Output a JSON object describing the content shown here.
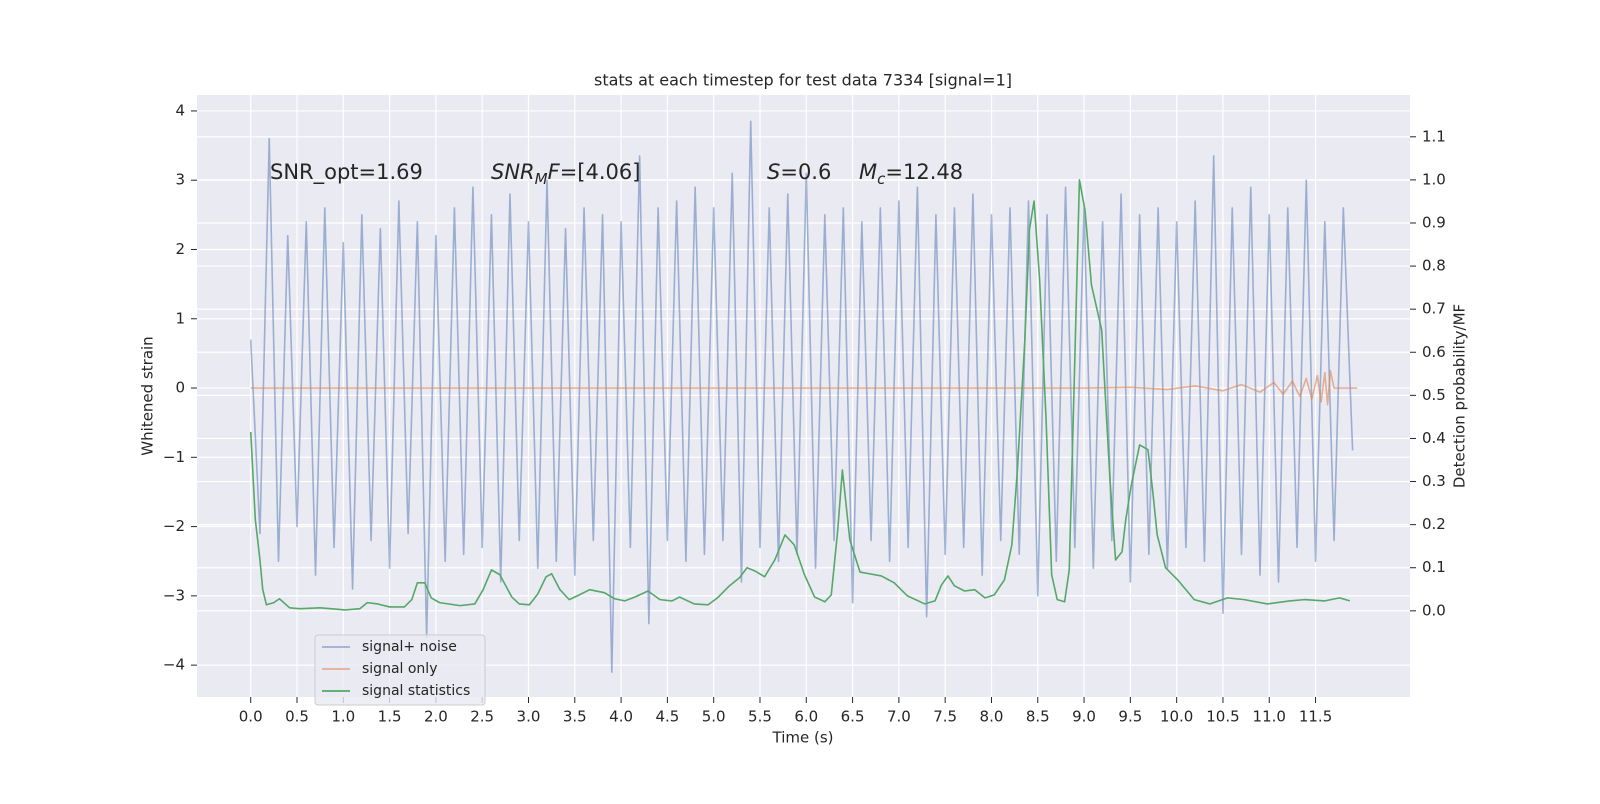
{
  "chart_data": {
    "type": "line",
    "title": "stats at each timestep for test data 7334 [signal=1]",
    "xlabel": "Time (s)",
    "ylabel": "Whitened strain",
    "y2label": "Detection probability/MF",
    "annotations": [
      [
        {
          "t": "SNR_opt=1.69"
        }
      ],
      [
        {
          "t": "SNR",
          "style": "italic"
        },
        {
          "t": "M",
          "style": "sub"
        },
        {
          "t": "F",
          "style": "italic"
        },
        {
          "t": "=[4.06]"
        }
      ],
      [
        {
          "t": "S",
          "style": "italic"
        },
        {
          "t": "=0.6"
        }
      ],
      [
        {
          "t": "M",
          "style": "italic"
        },
        {
          "t": "c",
          "style": "sub"
        },
        {
          "t": "=12.48"
        }
      ]
    ],
    "xlim": [
      -0.58,
      12.52
    ],
    "ylim": [
      -4.46,
      4.23
    ],
    "y2lim": [
      -0.2,
      1.197
    ],
    "xticks": [
      {
        "value": 0,
        "label": "0.0"
      },
      {
        "value": 0.5,
        "label": "0.5"
      },
      {
        "value": 1,
        "label": "1.0"
      },
      {
        "value": 1.5,
        "label": "1.5"
      },
      {
        "value": 2,
        "label": "2.0"
      },
      {
        "value": 2.5,
        "label": "2.5"
      },
      {
        "value": 3,
        "label": "3.0"
      },
      {
        "value": 3.5,
        "label": "3.5"
      },
      {
        "value": 4,
        "label": "4.0"
      },
      {
        "value": 4.5,
        "label": "4.5"
      },
      {
        "value": 5,
        "label": "5.0"
      },
      {
        "value": 5.5,
        "label": "5.5"
      },
      {
        "value": 6,
        "label": "6.0"
      },
      {
        "value": 6.5,
        "label": "6.5"
      },
      {
        "value": 7,
        "label": "7.0"
      },
      {
        "value": 7.5,
        "label": "7.5"
      },
      {
        "value": 8,
        "label": "8.0"
      },
      {
        "value": 8.5,
        "label": "8.5"
      },
      {
        "value": 9,
        "label": "9.0"
      },
      {
        "value": 9.5,
        "label": "9.5"
      },
      {
        "value": 10,
        "label": "10.0"
      },
      {
        "value": 10.5,
        "label": "10.5"
      },
      {
        "value": 11,
        "label": "11.0"
      },
      {
        "value": 11.5,
        "label": "11.5"
      }
    ],
    "yticks": [
      {
        "value": -4,
        "label": "−4"
      },
      {
        "value": -3,
        "label": "−3"
      },
      {
        "value": -2,
        "label": "−2"
      },
      {
        "value": -1,
        "label": "−1"
      },
      0,
      1,
      2,
      3,
      4
    ],
    "y2ticks": [
      {
        "value": 0,
        "label": "0.0"
      },
      {
        "value": 0.1,
        "label": "0.1"
      },
      {
        "value": 0.2,
        "label": "0.2"
      },
      {
        "value": 0.3,
        "label": "0.3"
      },
      {
        "value": 0.4,
        "label": "0.4"
      },
      {
        "value": 0.5,
        "label": "0.5"
      },
      {
        "value": 0.6,
        "label": "0.6"
      },
      {
        "value": 0.7,
        "label": "0.7"
      },
      {
        "value": 0.8,
        "label": "0.8"
      },
      {
        "value": 0.9,
        "label": "0.9"
      },
      {
        "value": 1,
        "label": "1.0"
      },
      {
        "value": 1.1,
        "label": "1.1"
      }
    ],
    "grid": true,
    "legend": "lower left",
    "series": [
      {
        "name": "signal+ noise",
        "color": "#4c72b0",
        "opacity": 0.5,
        "x": [
          0,
          0.1,
          0.2,
          0.3,
          0.4,
          0.5,
          0.6,
          0.7,
          0.8,
          0.9,
          1,
          1.1,
          1.2,
          1.3,
          1.4,
          1.5,
          1.6,
          1.7,
          1.8,
          1.9,
          2,
          2.1,
          2.2,
          2.3,
          2.4,
          2.5,
          2.6,
          2.7,
          2.8,
          2.9,
          3,
          3.1,
          3.2,
          3.3,
          3.4,
          3.5,
          3.6,
          3.7,
          3.8,
          3.9,
          4,
          4.1,
          4.2,
          4.3,
          4.4,
          4.5,
          4.6,
          4.7,
          4.8,
          4.9,
          5,
          5.1,
          5.2,
          5.3,
          5.4,
          5.5,
          5.6,
          5.7,
          5.8,
          5.9,
          6,
          6.1,
          6.2,
          6.3,
          6.4,
          6.5,
          6.6,
          6.7,
          6.8,
          6.9,
          7,
          7.1,
          7.2,
          7.3,
          7.4,
          7.5,
          7.6,
          7.7,
          7.8,
          7.9,
          8,
          8.1,
          8.2,
          8.3,
          8.4,
          8.5,
          8.6,
          8.7,
          8.8,
          8.9,
          9,
          9.1,
          9.2,
          9.3,
          9.4,
          9.5,
          9.6,
          9.7,
          9.8,
          9.9,
          10,
          10.1,
          10.2,
          10.3,
          10.4,
          10.5,
          10.6,
          10.7,
          10.8,
          10.9,
          11,
          11.1,
          11.2,
          11.3,
          11.4,
          11.5,
          11.6,
          11.7,
          11.8,
          11.9
        ],
        "values": [
          0.7,
          -2.1,
          3.6,
          -2.5,
          2.2,
          -2.0,
          2.4,
          -2.7,
          2.6,
          -2.3,
          2.1,
          -2.9,
          2.5,
          -2.2,
          2.3,
          -2.6,
          2.7,
          -2.1,
          2.4,
          -3.6,
          2.2,
          -2.5,
          2.6,
          -2.4,
          2.9,
          -2.3,
          2.5,
          -2.8,
          2.8,
          -2.2,
          2.4,
          -2.6,
          3.0,
          -2.5,
          2.3,
          -2.7,
          2.6,
          -2.2,
          2.5,
          -4.1,
          2.4,
          -2.3,
          3.35,
          -3.4,
          2.6,
          -2.2,
          2.7,
          -2.5,
          2.9,
          -2.4,
          2.6,
          -2.2,
          3.1,
          -2.8,
          3.85,
          -2.3,
          2.6,
          -2.5,
          2.8,
          -2.4,
          3.1,
          -2.6,
          2.5,
          -2.2,
          2.6,
          -3.1,
          2.4,
          -2.2,
          2.6,
          -2.5,
          2.7,
          -2.3,
          2.9,
          -3.3,
          2.5,
          -2.4,
          2.6,
          -2.3,
          2.8,
          -2.7,
          2.5,
          -2.2,
          2.6,
          -2.4,
          2.7,
          -3.0,
          2.5,
          -2.5,
          2.9,
          -2.3,
          2.6,
          -2.6,
          2.4,
          -2.2,
          2.8,
          -2.8,
          2.5,
          -2.4,
          2.6,
          -2.6,
          2.4,
          -2.3,
          2.7,
          -2.5,
          3.35,
          -3.25,
          2.6,
          -2.4,
          2.9,
          -2.7,
          2.5,
          -2.8,
          2.6,
          -2.3,
          3.0,
          -2.5,
          2.4,
          -2.2,
          2.6,
          -0.9
        ]
      },
      {
        "name": "signal only",
        "color": "#dd8452",
        "opacity": 0.6,
        "x": [
          0,
          9,
          9.5,
          9.9,
          10.2,
          10.5,
          10.7,
          10.9,
          11.05,
          11.15,
          11.25,
          11.33,
          11.4,
          11.46,
          11.52,
          11.56,
          11.6,
          11.63,
          11.66,
          11.7,
          11.95
        ],
        "values": [
          0,
          0,
          0.01,
          -0.02,
          0.03,
          -0.04,
          0.05,
          -0.06,
          0.08,
          -0.09,
          0.1,
          -0.12,
          0.14,
          -0.16,
          0.18,
          -0.2,
          0.22,
          -0.24,
          0.25,
          0,
          0
        ]
      },
      {
        "name": "signal statistics",
        "color": "#55a868",
        "opacity": 1,
        "axis": "y2",
        "x": [
          0,
          0.05,
          0.1,
          0.13,
          0.17,
          0.25,
          0.31,
          0.42,
          0.53,
          0.75,
          1.02,
          1.18,
          1.26,
          1.37,
          1.5,
          1.66,
          1.74,
          1.8,
          1.88,
          1.95,
          2.04,
          2.26,
          2.42,
          2.51,
          2.6,
          2.69,
          2.82,
          2.9,
          3.01,
          3.1,
          3.19,
          3.25,
          3.34,
          3.44,
          3.53,
          3.66,
          3.82,
          3.93,
          4.04,
          4.15,
          4.29,
          4.42,
          4.55,
          4.63,
          4.79,
          4.94,
          5.04,
          5.17,
          5.28,
          5.36,
          5.44,
          5.55,
          5.66,
          5.77,
          5.87,
          5.98,
          6.09,
          6.2,
          6.27,
          6.34,
          6.39,
          6.47,
          6.58,
          6.68,
          6.81,
          6.95,
          7.09,
          7.28,
          7.39,
          7.46,
          7.53,
          7.6,
          7.71,
          7.82,
          7.93,
          8.03,
          8.14,
          8.22,
          8.28,
          8.36,
          8.41,
          8.46,
          8.52,
          8.59,
          8.65,
          8.71,
          8.79,
          8.84,
          8.9,
          8.95,
          9.01,
          9.08,
          9.19,
          9.28,
          9.34,
          9.41,
          9.45,
          9.51,
          9.6,
          9.69,
          9.74,
          9.79,
          9.88,
          10.01,
          10.19,
          10.36,
          10.55,
          10.73,
          10.98,
          11.22,
          11.38,
          11.6,
          11.76,
          11.87
        ],
        "values": [
          0.415,
          0.211,
          0.118,
          0.049,
          0.014,
          0.019,
          0.028,
          0.007,
          0.005,
          0.007,
          0.002,
          0.005,
          0.019,
          0.016,
          0.009,
          0.009,
          0.026,
          0.065,
          0.065,
          0.03,
          0.019,
          0.012,
          0.016,
          0.049,
          0.095,
          0.084,
          0.032,
          0.016,
          0.014,
          0.039,
          0.079,
          0.086,
          0.049,
          0.026,
          0.035,
          0.049,
          0.042,
          0.028,
          0.023,
          0.032,
          0.046,
          0.026,
          0.023,
          0.032,
          0.016,
          0.014,
          0.03,
          0.058,
          0.077,
          0.1,
          0.093,
          0.079,
          0.118,
          0.176,
          0.153,
          0.084,
          0.032,
          0.021,
          0.037,
          0.188,
          0.327,
          0.165,
          0.09,
          0.086,
          0.081,
          0.065,
          0.035,
          0.016,
          0.023,
          0.06,
          0.081,
          0.058,
          0.046,
          0.049,
          0.03,
          0.037,
          0.072,
          0.153,
          0.327,
          0.626,
          0.884,
          0.951,
          0.768,
          0.443,
          0.084,
          0.026,
          0.021,
          0.095,
          0.582,
          1.0,
          0.93,
          0.756,
          0.652,
          0.304,
          0.118,
          0.137,
          0.211,
          0.292,
          0.385,
          0.374,
          0.281,
          0.176,
          0.1,
          0.072,
          0.026,
          0.016,
          0.03,
          0.026,
          0.016,
          0.023,
          0.026,
          0.023,
          0.03,
          0.023
        ]
      }
    ]
  }
}
